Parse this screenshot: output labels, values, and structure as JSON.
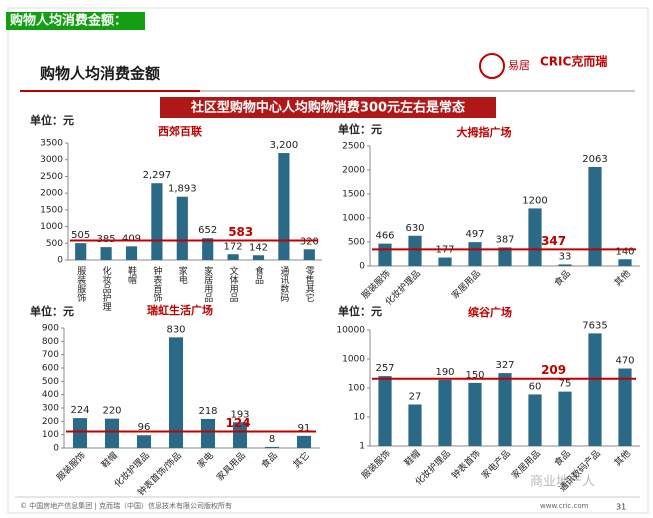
{
  "header": {
    "tag": "购物人均消费金额：",
    "title": "购物人均消费金额",
    "banner": "社区型购物中心人均购物消费300元左右是常态",
    "logo_eju": "易居",
    "logo_cric": "CRIC克而瑞"
  },
  "footer": {
    "copyright": "© 中国房地产信息集团 | 克而瑞（中国）信息技术有限公司版权所有",
    "site": "www.cric.com",
    "page": "31",
    "watermark": "商业地产人"
  },
  "chart_data": [
    {
      "type": "bar",
      "title": "西郊百联",
      "y_unit": "单位：元",
      "categories": [
        "服装服饰",
        "化妆品护理",
        "鞋帽",
        "钟表首饰",
        "家电",
        "家居用品",
        "文体用品",
        "食品",
        "通讯数码",
        "零售其它"
      ],
      "values": [
        505,
        385,
        409,
        2297,
        1893,
        652,
        172,
        142,
        3200,
        320
      ],
      "value_labels": [
        "505",
        "385",
        "409",
        "2,297",
        "1,893",
        "652",
        "172",
        "142",
        "3,200",
        "320"
      ],
      "average": 583,
      "color": "#2b6a86",
      "average_color": "#c00000",
      "ylim": [
        0,
        3500
      ],
      "yticks": [
        0,
        500,
        1000,
        1500,
        2000,
        2500,
        3000,
        3500
      ]
    },
    {
      "type": "bar",
      "title": "大拇指广场",
      "y_unit": "单位：元",
      "categories": [
        "服装服饰",
        "化妆护理品",
        null,
        "家居用品",
        null,
        null,
        "食品",
        null,
        "其他"
      ],
      "values": [
        466,
        630,
        177,
        497,
        387,
        1200,
        33,
        2063,
        140
      ],
      "average": 347,
      "color": "#2b6a86",
      "average_color": "#c00000",
      "ylim": [
        0,
        2500
      ],
      "yticks": [
        0,
        500,
        1000,
        1500,
        2000,
        2500
      ]
    },
    {
      "type": "bar",
      "title": "瑞虹生活广场",
      "y_unit": "单位：元",
      "categories": [
        "服装服饰",
        "鞋帽",
        "化妆护理品",
        "钟表首饰/饰品",
        "家电",
        "家具用品",
        "食品",
        "其它"
      ],
      "values": [
        224,
        220,
        96,
        830,
        218,
        193,
        8,
        91
      ],
      "average": 124,
      "color": "#2b6a86",
      "average_color": "#c00000",
      "ylim": [
        0,
        900
      ],
      "yticks": [
        0,
        100,
        200,
        300,
        400,
        500,
        600,
        700,
        800,
        900
      ]
    },
    {
      "type": "bar",
      "title": "缤谷广场",
      "y_unit": "单位：元",
      "log_scale": true,
      "categories": [
        "服装服饰",
        "鞋帽",
        "化妆护理品",
        "钟表首饰",
        "家电产品",
        "家居用品",
        "食品",
        "通讯数码产品",
        "其他"
      ],
      "values": [
        257,
        27,
        190,
        150,
        327,
        60,
        75,
        7635,
        470
      ],
      "average": 209,
      "color": "#2b6a86",
      "average_color": "#c00000",
      "ylim": [
        1,
        10000
      ],
      "yticks": [
        1,
        10,
        100,
        1000,
        10000
      ]
    }
  ]
}
